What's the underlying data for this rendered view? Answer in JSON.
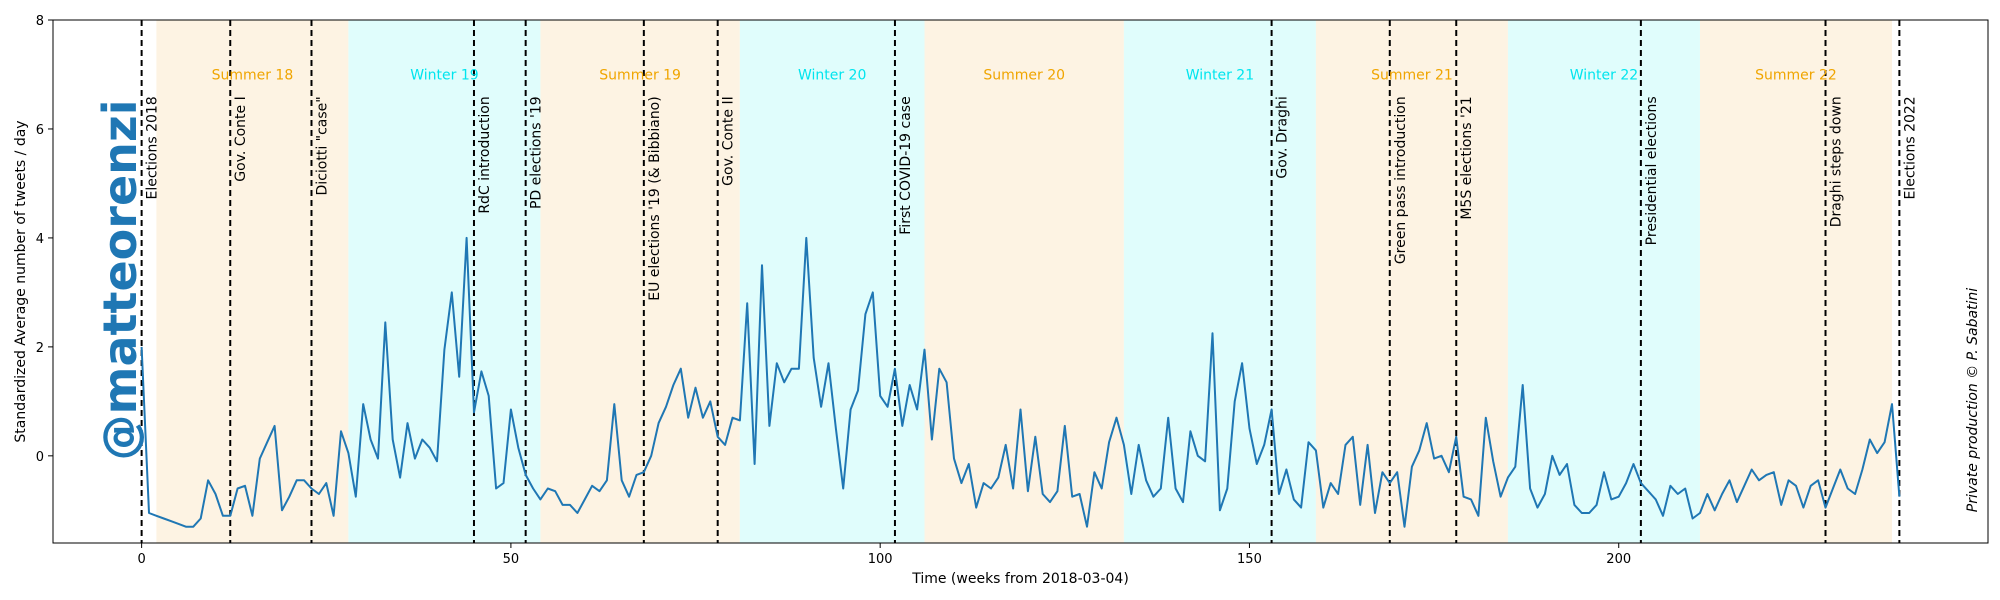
{
  "chart_data": {
    "type": "line",
    "xlabel": "Time (weeks from 2018-03-04)",
    "ylabel": "Standardized Average number of tweets / day",
    "xlim": [
      -12,
      250
    ],
    "ylim": [
      -1.6,
      8
    ],
    "xticks": [
      0,
      50,
      100,
      150,
      200
    ],
    "yticks": [
      0,
      2,
      4,
      6,
      8
    ],
    "grid": false,
    "watermark": "@matteorenzi",
    "credit": "Private production © P. Sabatini",
    "line_color": "#1f77b4",
    "seasons": [
      {
        "name": "Summer 18",
        "start": 2,
        "end": 28,
        "kind": "summer"
      },
      {
        "name": "Winter 19",
        "start": 28,
        "end": 54,
        "kind": "winter"
      },
      {
        "name": "Summer 19",
        "start": 54,
        "end": 81,
        "kind": "summer"
      },
      {
        "name": "Winter 20",
        "start": 81,
        "end": 106,
        "kind": "winter"
      },
      {
        "name": "Summer 20",
        "start": 106,
        "end": 133,
        "kind": "summer"
      },
      {
        "name": "Winter 21",
        "start": 133,
        "end": 159,
        "kind": "winter"
      },
      {
        "name": "Summer 21",
        "start": 159,
        "end": 185,
        "kind": "summer"
      },
      {
        "name": "Winter 22",
        "start": 185,
        "end": 211,
        "kind": "winter"
      },
      {
        "name": "Summer 22",
        "start": 211,
        "end": 237,
        "kind": "summer"
      }
    ],
    "season_colors": {
      "summer": "#fdf3e3",
      "winter": "#e0fdfc"
    },
    "season_label_colors": {
      "summer": "#f0a500",
      "winter": "#00e5ee"
    },
    "events": [
      {
        "x": 0,
        "label": "Elections 2018"
      },
      {
        "x": 12,
        "label": "Gov. Conte I"
      },
      {
        "x": 23,
        "label": "Diciotti \"case\""
      },
      {
        "x": 45,
        "label": "RdC introduction"
      },
      {
        "x": 52,
        "label": "PD elections '19"
      },
      {
        "x": 68,
        "label": "EU elections '19 (& Bibbiano)"
      },
      {
        "x": 78,
        "label": "Gov. Conte II"
      },
      {
        "x": 102,
        "label": "First COVID-19 case"
      },
      {
        "x": 153,
        "label": "Gov. Draghi"
      },
      {
        "x": 169,
        "label": "Green pass introduction"
      },
      {
        "x": 178,
        "label": "M5S elections '21"
      },
      {
        "x": 203,
        "label": "Presidential elections"
      },
      {
        "x": 228,
        "label": "Draghi steps down"
      },
      {
        "x": 238,
        "label": "Elections 2022"
      }
    ],
    "series": [
      {
        "x": [
          0,
          1,
          2,
          3,
          4,
          5,
          6,
          7,
          8,
          9,
          10,
          11,
          12,
          13,
          14,
          15,
          16,
          17,
          18,
          19,
          20,
          21,
          22,
          23,
          24,
          25,
          26,
          27,
          28,
          29,
          30,
          31,
          32,
          33,
          34,
          35,
          36,
          37,
          38,
          39,
          40,
          41,
          42,
          43,
          44,
          45,
          46,
          47,
          48,
          49,
          50,
          51,
          52,
          53,
          54,
          55,
          56,
          57,
          58,
          59,
          60,
          61,
          62,
          63,
          64,
          65,
          66,
          67,
          68,
          69,
          70,
          71,
          72,
          73,
          74,
          75,
          76,
          77,
          78,
          79,
          80,
          81,
          82,
          83,
          84,
          85,
          86,
          87,
          88,
          89,
          90,
          91,
          92,
          93,
          94,
          95,
          96,
          97,
          98,
          99,
          100,
          101,
          102,
          103,
          104,
          105,
          106,
          107,
          108,
          109,
          110,
          111,
          112,
          113,
          114,
          115,
          116,
          117,
          118,
          119,
          120,
          121,
          122,
          123,
          124,
          125,
          126,
          127,
          128,
          129,
          130,
          131,
          132,
          133,
          134,
          135,
          136,
          137,
          138,
          139,
          140,
          141,
          142,
          143,
          144,
          145,
          146,
          147,
          148,
          149,
          150,
          151,
          152,
          153,
          154,
          155,
          156,
          157,
          158,
          159,
          160,
          161,
          162,
          163,
          164,
          165,
          166,
          167,
          168,
          169,
          170,
          171,
          172,
          173,
          174,
          175,
          176,
          177,
          178,
          179,
          180,
          181,
          182,
          183,
          184,
          185,
          186,
          187,
          188,
          189,
          190,
          191,
          192,
          193,
          194,
          195,
          196,
          197,
          198,
          199,
          200,
          201,
          202,
          203,
          204,
          205,
          206,
          207,
          208,
          209,
          210,
          211,
          212,
          213,
          214,
          215,
          216,
          217,
          218,
          219,
          220,
          221,
          222,
          223,
          224,
          225,
          226,
          227,
          228,
          229,
          230,
          231,
          232,
          233,
          234,
          235,
          236,
          237,
          238
        ],
        "y": [
          2.0,
          -1.05,
          -1.1,
          -1.15,
          -1.2,
          -1.25,
          -1.3,
          -1.3,
          -1.15,
          -0.45,
          -0.7,
          -1.1,
          -1.1,
          -0.6,
          -0.55,
          -1.1,
          -0.05,
          0.25,
          0.55,
          -1.0,
          -0.75,
          -0.45,
          -0.45,
          -0.6,
          -0.7,
          -0.5,
          -1.1,
          0.45,
          0.05,
          -0.75,
          0.95,
          0.3,
          -0.05,
          2.45,
          0.3,
          -0.4,
          0.6,
          -0.05,
          0.3,
          0.15,
          -0.1,
          1.95,
          3.0,
          1.45,
          4.0,
          0.8,
          1.55,
          1.1,
          -0.6,
          -0.5,
          0.85,
          0.15,
          -0.35,
          -0.6,
          -0.8,
          -0.6,
          -0.65,
          -0.9,
          -0.9,
          -1.05,
          -0.8,
          -0.55,
          -0.65,
          -0.45,
          0.95,
          -0.45,
          -0.75,
          -0.35,
          -0.3,
          0.0,
          0.6,
          0.9,
          1.3,
          1.6,
          0.7,
          1.25,
          0.7,
          1.0,
          0.35,
          0.2,
          0.7,
          0.65,
          2.8,
          -0.15,
          3.5,
          0.55,
          1.7,
          1.35,
          1.6,
          1.6,
          4.0,
          1.8,
          0.9,
          1.7,
          0.5,
          -0.6,
          0.85,
          1.2,
          2.6,
          3.0,
          1.1,
          0.9,
          1.6,
          0.55,
          1.3,
          0.85,
          1.95,
          0.3,
          1.6,
          1.35,
          -0.05,
          -0.5,
          -0.15,
          -0.95,
          -0.5,
          -0.6,
          -0.4,
          0.2,
          -0.6,
          0.85,
          -0.65,
          0.35,
          -0.7,
          -0.85,
          -0.65,
          0.55,
          -0.75,
          -0.7,
          -1.3,
          -0.3,
          -0.6,
          0.25,
          0.7,
          0.2,
          -0.7,
          0.2,
          -0.45,
          -0.75,
          -0.6,
          0.7,
          -0.6,
          -0.85,
          0.45,
          0.0,
          -0.1,
          2.25,
          -1.0,
          -0.6,
          1.0,
          1.7,
          0.5,
          -0.15,
          0.2,
          0.85,
          -0.7,
          -0.25,
          -0.8,
          -0.95,
          0.25,
          0.1,
          -0.95,
          -0.5,
          -0.7,
          0.2,
          0.35,
          -0.9,
          0.2,
          -1.05,
          -0.3,
          -0.5,
          -0.3,
          -1.3,
          -0.2,
          0.1,
          0.6,
          -0.05,
          0.0,
          -0.3,
          0.35,
          -0.75,
          -0.8,
          -1.1,
          0.7,
          -0.1,
          -0.75,
          -0.4,
          -0.2,
          1.3,
          -0.6,
          -0.95,
          -0.7,
          0.0,
          -0.35,
          -0.15,
          -0.9,
          -1.05,
          -1.05,
          -0.9,
          -0.3,
          -0.8,
          -0.75,
          -0.5,
          -0.15,
          -0.5,
          -0.65,
          -0.8,
          -1.1,
          -0.55,
          -0.7,
          -0.6,
          -1.15,
          -1.05,
          -0.7,
          -1.0,
          -0.7,
          -0.45,
          -0.85,
          -0.55,
          -0.25,
          -0.45,
          -0.35,
          -0.3,
          -0.9,
          -0.45,
          -0.55,
          -0.95,
          -0.55,
          -0.45,
          -0.95,
          -0.6,
          -0.25,
          -0.6,
          -0.7,
          -0.25,
          0.3,
          0.05,
          0.25,
          0.95,
          -0.75
        ]
      }
    ]
  }
}
